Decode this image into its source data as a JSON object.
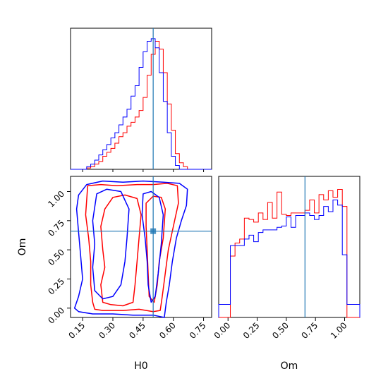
{
  "chart_data": [
    {
      "type": "histogram",
      "panel": "H0 marginal",
      "xlim": [
        0.09,
        0.79
      ],
      "truth": 0.5,
      "bin_edges": [
        0.09,
        0.11,
        0.13,
        0.15,
        0.17,
        0.19,
        0.21,
        0.23,
        0.25,
        0.27,
        0.29,
        0.31,
        0.33,
        0.35,
        0.37,
        0.39,
        0.41,
        0.43,
        0.45,
        0.47,
        0.49,
        0.51,
        0.53,
        0.55,
        0.57,
        0.59,
        0.61,
        0.63,
        0.65,
        0.67,
        0.69,
        0.71,
        0.73,
        0.75,
        0.77,
        0.79
      ],
      "series": [
        {
          "color": "#ff0000",
          "values": [
            0,
            0,
            0,
            0,
            0.01,
            0.02,
            0.04,
            0.06,
            0.1,
            0.13,
            0.16,
            0.2,
            0.25,
            0.28,
            0.33,
            0.36,
            0.4,
            0.45,
            0.55,
            0.72,
            0.88,
            0.98,
            0.92,
            0.74,
            0.5,
            0.3,
            0.12,
            0.05,
            0.02,
            0,
            0,
            0,
            0,
            0,
            0
          ]
        },
        {
          "color": "#0000ff",
          "values": [
            0,
            0,
            0,
            0,
            0.02,
            0.04,
            0.07,
            0.11,
            0.15,
            0.19,
            0.24,
            0.28,
            0.34,
            0.4,
            0.46,
            0.56,
            0.64,
            0.78,
            0.9,
            0.98,
            1.0,
            0.93,
            0.74,
            0.52,
            0.28,
            0.1,
            0.03,
            0,
            0,
            0,
            0,
            0,
            0,
            0,
            0
          ]
        }
      ],
      "xticks": [
        0.15,
        0.3,
        0.45,
        0.6,
        0.75
      ]
    },
    {
      "type": "contour",
      "panel": "H0 vs Om joint",
      "xlabel": "H0",
      "ylabel": "Om",
      "xlim": [
        0.09,
        0.79
      ],
      "ylim": [
        -0.08,
        1.13
      ],
      "truth": {
        "x": 0.5,
        "y": 0.66
      },
      "xticks": [
        0.15,
        0.3,
        0.45,
        0.6,
        0.75
      ],
      "xtick_labels": [
        "0.15",
        "0.30",
        "0.45",
        "0.60",
        "0.75"
      ],
      "yticks": [
        0.0,
        0.25,
        0.5,
        0.75,
        1.0
      ],
      "ytick_labels": [
        "0.00",
        "0.25",
        "0.50",
        "0.75",
        "1.00"
      ],
      "series": [
        {
          "color": "#ff0000",
          "contours": [
            [
              [
                0.175,
                1.05
              ],
              [
                0.24,
                1.06
              ],
              [
                0.32,
                1.05
              ],
              [
                0.42,
                1.06
              ],
              [
                0.5,
                1.06
              ],
              [
                0.57,
                1.07
              ],
              [
                0.62,
                1.05
              ],
              [
                0.625,
                0.9
              ],
              [
                0.6,
                0.7
              ],
              [
                0.575,
                0.5
              ],
              [
                0.56,
                0.3
              ],
              [
                0.545,
                0.1
              ],
              [
                0.535,
                -0.02
              ],
              [
                0.5,
                -0.03
              ],
              [
                0.43,
                -0.01
              ],
              [
                0.35,
                -0.02
              ],
              [
                0.25,
                -0.02
              ],
              [
                0.21,
                -0.01
              ],
              [
                0.2,
                0.05
              ],
              [
                0.19,
                0.2
              ],
              [
                0.19,
                0.4
              ],
              [
                0.18,
                0.6
              ],
              [
                0.165,
                0.8
              ],
              [
                0.175,
                1.05
              ]
            ],
            [
              [
                0.3,
                0.95
              ],
              [
                0.36,
                0.97
              ],
              [
                0.42,
                0.94
              ],
              [
                0.44,
                0.8
              ],
              [
                0.43,
                0.6
              ],
              [
                0.42,
                0.4
              ],
              [
                0.41,
                0.2
              ],
              [
                0.4,
                0.05
              ],
              [
                0.35,
                0.02
              ],
              [
                0.29,
                0.03
              ],
              [
                0.25,
                0.05
              ],
              [
                0.24,
                0.2
              ],
              [
                0.26,
                0.35
              ],
              [
                0.25,
                0.5
              ],
              [
                0.24,
                0.7
              ],
              [
                0.26,
                0.85
              ],
              [
                0.3,
                0.95
              ]
            ],
            [
              [
                0.465,
                0.9
              ],
              [
                0.5,
                0.96
              ],
              [
                0.54,
                0.95
              ],
              [
                0.56,
                0.85
              ],
              [
                0.55,
                0.6
              ],
              [
                0.53,
                0.4
              ],
              [
                0.52,
                0.2
              ],
              [
                0.505,
                0.05
              ],
              [
                0.48,
                0.1
              ],
              [
                0.475,
                0.3
              ],
              [
                0.47,
                0.5
              ],
              [
                0.465,
                0.7
              ],
              [
                0.465,
                0.9
              ]
            ]
          ]
        },
        {
          "color": "#0000ff",
          "contours": [
            [
              [
                0.13,
                0.97
              ],
              [
                0.17,
                1.06
              ],
              [
                0.25,
                1.09
              ],
              [
                0.35,
                1.08
              ],
              [
                0.45,
                1.09
              ],
              [
                0.55,
                1.08
              ],
              [
                0.63,
                1.07
              ],
              [
                0.67,
                1.02
              ],
              [
                0.665,
                0.88
              ],
              [
                0.64,
                0.75
              ],
              [
                0.615,
                0.6
              ],
              [
                0.595,
                0.4
              ],
              [
                0.58,
                0.2
              ],
              [
                0.565,
                0.05
              ],
              [
                0.555,
                -0.08
              ],
              [
                0.5,
                -0.06
              ],
              [
                0.4,
                -0.06
              ],
              [
                0.3,
                -0.05
              ],
              [
                0.2,
                -0.05
              ],
              [
                0.13,
                -0.03
              ],
              [
                0.11,
                0.0
              ],
              [
                0.13,
                0.1
              ],
              [
                0.15,
                0.25
              ],
              [
                0.14,
                0.45
              ],
              [
                0.13,
                0.65
              ],
              [
                0.12,
                0.85
              ],
              [
                0.13,
                0.97
              ]
            ],
            [
              [
                0.22,
                0.98
              ],
              [
                0.27,
                1.02
              ],
              [
                0.34,
                1.0
              ],
              [
                0.38,
                0.85
              ],
              [
                0.37,
                0.6
              ],
              [
                0.36,
                0.4
              ],
              [
                0.34,
                0.2
              ],
              [
                0.3,
                0.1
              ],
              [
                0.25,
                0.08
              ],
              [
                0.21,
                0.15
              ],
              [
                0.2,
                0.35
              ],
              [
                0.21,
                0.55
              ],
              [
                0.2,
                0.75
              ],
              [
                0.22,
                0.98
              ]
            ],
            [
              [
                0.45,
                0.98
              ],
              [
                0.49,
                1.0
              ],
              [
                0.53,
                0.95
              ],
              [
                0.55,
                0.8
              ],
              [
                0.54,
                0.55
              ],
              [
                0.525,
                0.3
              ],
              [
                0.51,
                0.1
              ],
              [
                0.49,
                0.05
              ],
              [
                0.475,
                0.2
              ],
              [
                0.47,
                0.4
              ],
              [
                0.46,
                0.6
              ],
              [
                0.445,
                0.8
              ],
              [
                0.45,
                0.98
              ]
            ]
          ]
        }
      ]
    },
    {
      "type": "histogram",
      "panel": "Om marginal",
      "xlabel": "Om",
      "xlim": [
        -0.08,
        1.13
      ],
      "truth": 0.66,
      "xticks": [
        0.0,
        0.25,
        0.5,
        0.75,
        1.0
      ],
      "xtick_labels": [
        "0.00",
        "0.25",
        "0.50",
        "0.75",
        "1.00"
      ],
      "bin_edges": [
        -0.08,
        -0.02,
        0.02,
        0.06,
        0.1,
        0.14,
        0.18,
        0.22,
        0.26,
        0.3,
        0.34,
        0.38,
        0.42,
        0.46,
        0.5,
        0.54,
        0.58,
        0.62,
        0.66,
        0.7,
        0.74,
        0.78,
        0.82,
        0.86,
        0.9,
        0.94,
        0.98,
        1.02,
        1.08,
        1.13
      ],
      "series": [
        {
          "color": "#ff0000",
          "values": [
            0,
            0,
            0.47,
            0.57,
            0.6,
            0.76,
            0.75,
            0.73,
            0.8,
            0.75,
            0.88,
            0.76,
            0.96,
            0.79,
            0.78,
            0.8,
            0.8,
            0.8,
            0.82,
            0.9,
            0.8,
            0.94,
            0.9,
            0.97,
            0.92,
            0.98,
            0.85,
            0,
            0
          ]
        },
        {
          "color": "#0000ff",
          "values": [
            0.1,
            0.1,
            0.55,
            0.55,
            0.55,
            0.6,
            0.63,
            0.58,
            0.65,
            0.67,
            0.67,
            0.67,
            0.69,
            0.7,
            0.77,
            0.69,
            0.78,
            0.78,
            0.8,
            0.78,
            0.75,
            0.78,
            0.85,
            0.81,
            0.9,
            0.86,
            0.48,
            0.1,
            0.1
          ]
        }
      ]
    }
  ]
}
